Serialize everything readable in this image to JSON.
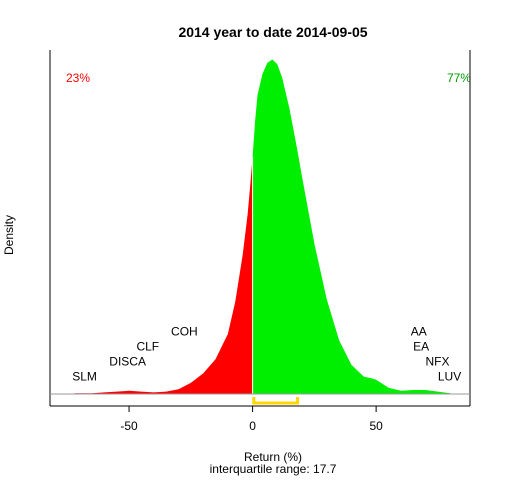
{
  "chart_data": {
    "type": "area",
    "title": "2014  year to date 2014-09-05",
    "xlabel": "Return (%)",
    "ylabel": "Density",
    "subtitle": "interquartile range: 17.7",
    "xlim": [
      -82,
      88
    ],
    "ylim": [
      0,
      0.0435
    ],
    "x_ticks": [
      -50,
      0,
      50
    ],
    "x_tick_labels": [
      "-50",
      "0",
      "50"
    ],
    "negative_share_label": "23%",
    "positive_share_label": "77%",
    "colors": {
      "negative": "#ff0000",
      "positive": "#00ee00",
      "divider": "#ffffff",
      "iqr": "#ffd700",
      "negative_text": "#ff0000",
      "positive_text": "#009900"
    },
    "interquartile_range": [
      0.5,
      18.2
    ],
    "density_curve": {
      "x": [
        -72,
        -65,
        -60,
        -55,
        -50,
        -45,
        -40,
        -35,
        -30,
        -25,
        -20,
        -15,
        -10,
        -7,
        -4,
        -2,
        -1,
        0,
        1,
        2,
        4,
        6,
        8,
        10,
        12,
        15,
        18,
        20,
        25,
        30,
        35,
        40,
        45,
        48,
        50,
        55,
        60,
        65,
        70,
        75,
        80
      ],
      "y": [
        0.0001,
        0.0001,
        0.0002,
        0.0003,
        0.0004,
        0.0003,
        0.0002,
        0.0003,
        0.0006,
        0.0014,
        0.0026,
        0.0044,
        0.0076,
        0.0117,
        0.0176,
        0.0227,
        0.0262,
        0.03,
        0.0345,
        0.0378,
        0.0405,
        0.0419,
        0.0423,
        0.0417,
        0.04,
        0.036,
        0.031,
        0.0275,
        0.019,
        0.012,
        0.0068,
        0.0037,
        0.0022,
        0.002,
        0.0018,
        0.0008,
        0.0004,
        0.0005,
        0.0005,
        0.0003,
        0.0001
      ]
    },
    "annotations": [
      {
        "text": "SLM",
        "x": -73,
        "y": 0.0017
      },
      {
        "text": "DISCA",
        "x": -58,
        "y": 0.0036
      },
      {
        "text": "CLF",
        "x": -47,
        "y": 0.0055
      },
      {
        "text": "COH",
        "x": -33,
        "y": 0.0074
      },
      {
        "text": "AA",
        "x": 64,
        "y": 0.0074
      },
      {
        "text": "EA",
        "x": 65,
        "y": 0.0055
      },
      {
        "text": "NFX",
        "x": 70,
        "y": 0.0036
      },
      {
        "text": "LUV",
        "x": 75,
        "y": 0.0017
      }
    ]
  }
}
